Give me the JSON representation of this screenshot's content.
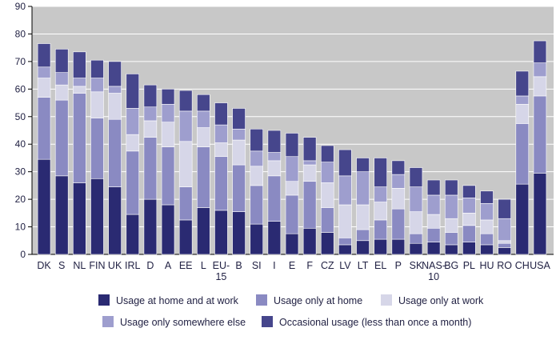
{
  "chart_data": {
    "type": "bar",
    "stacked": true,
    "title": "",
    "xlabel": "",
    "ylabel": "",
    "ylim": [
      0,
      90
    ],
    "yticks": [
      0,
      10,
      20,
      30,
      40,
      50,
      60,
      70,
      80,
      90
    ],
    "grid": true,
    "legend_position": "bottom",
    "plot_background": "#c8c8c8",
    "categories": [
      "DK",
      "S",
      "NL",
      "FIN",
      "UK",
      "IRL",
      "D",
      "A",
      "EE",
      "L",
      "EU-15",
      "B",
      "SI",
      "I",
      "E",
      "F",
      "CZ",
      "LV",
      "LT",
      "EL",
      "P",
      "SK",
      "NAS-10",
      "BG",
      "PL",
      "HU",
      "RO",
      "CH",
      "USA"
    ],
    "category_lines": [
      [
        "DK"
      ],
      [
        "S"
      ],
      [
        "NL"
      ],
      [
        "FIN"
      ],
      [
        "UK"
      ],
      [
        "IRL"
      ],
      [
        "D"
      ],
      [
        "A"
      ],
      [
        "EE"
      ],
      [
        "L"
      ],
      [
        "EU-",
        "15"
      ],
      [
        "B"
      ],
      [
        "SI"
      ],
      [
        "I"
      ],
      [
        "E"
      ],
      [
        "F"
      ],
      [
        "CZ"
      ],
      [
        "LV"
      ],
      [
        "LT"
      ],
      [
        "EL"
      ],
      [
        "P"
      ],
      [
        "SK"
      ],
      [
        "NAS-",
        "10"
      ],
      [
        "BG"
      ],
      [
        "PL"
      ],
      [
        "HU"
      ],
      [
        "RO"
      ],
      [
        "CH"
      ],
      [
        "USA"
      ]
    ],
    "series": [
      {
        "name": "Usage at home and at work",
        "color": "#2a2a72",
        "values": [
          34.5,
          28.5,
          26,
          27.5,
          24.5,
          14.5,
          20,
          18,
          12.5,
          17,
          16,
          15.5,
          11,
          12,
          7.5,
          9.5,
          8,
          3.5,
          5,
          5.5,
          5.5,
          4,
          4.5,
          3.5,
          4.5,
          3.5,
          2.5,
          25.5,
          29.5
        ]
      },
      {
        "name": "Usage only at home",
        "color": "#8a8ac2",
        "values": [
          22.5,
          27.5,
          32.5,
          22,
          24.5,
          23,
          22.5,
          21,
          12,
          22,
          19.5,
          17,
          14,
          16.5,
          14,
          17,
          9,
          2.5,
          4,
          7,
          11,
          3.5,
          5,
          4.5,
          6,
          4,
          1.5,
          22,
          28
        ]
      },
      {
        "name": "Usage only at work",
        "color": "#d6d6e8",
        "values": [
          7,
          5.5,
          2.5,
          9.5,
          9.5,
          6,
          6,
          9,
          16.5,
          7,
          5,
          9,
          7,
          5.5,
          5,
          6,
          9,
          12,
          9,
          6.5,
          7.5,
          8,
          5,
          5,
          4.5,
          5,
          1,
          7,
          7
        ]
      },
      {
        "name": "Usage only somewhere else",
        "color": "#9e9ece",
        "values": [
          4,
          4.5,
          3,
          5,
          2.5,
          9.5,
          5,
          6.5,
          11,
          6,
          6.5,
          4,
          5.5,
          3,
          9,
          1.5,
          7.5,
          10.5,
          12,
          5.5,
          5,
          9,
          7,
          8.5,
          5.5,
          6,
          8,
          3,
          5
        ]
      },
      {
        "name": "Occasional usage (less than once a month)",
        "color": "#46468c",
        "values": [
          8.5,
          8.5,
          9.5,
          6.5,
          9,
          12.5,
          8,
          5.5,
          7.5,
          6,
          8,
          7.5,
          8,
          8,
          8.5,
          8.5,
          6,
          9.5,
          5,
          10.5,
          5,
          7,
          5.5,
          5.5,
          4.5,
          4.5,
          7,
          9,
          8
        ]
      }
    ]
  }
}
